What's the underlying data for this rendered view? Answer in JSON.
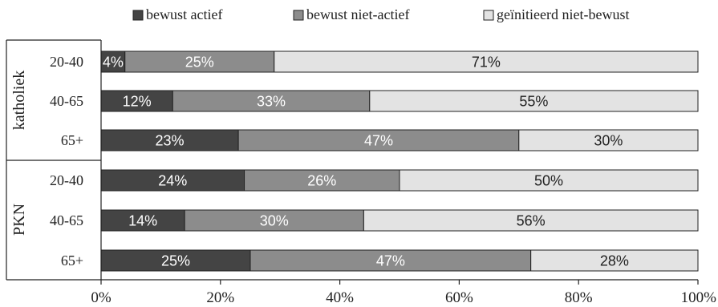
{
  "chart_data": {
    "type": "bar",
    "orientation": "horizontal",
    "stacked": true,
    "xlim": [
      0,
      100
    ],
    "x_ticks": [
      "0%",
      "20%",
      "40%",
      "60%",
      "80%",
      "100%"
    ],
    "legend_position": "top",
    "groups": [
      {
        "label": "katholiek",
        "categories": [
          "20-40",
          "40-65",
          "65+"
        ]
      },
      {
        "label": "PKN",
        "categories": [
          "20-40",
          "40-65",
          "65+"
        ]
      }
    ],
    "series": [
      {
        "name": "bewust actief",
        "color": "#444444",
        "label_color": "#ffffff",
        "values": [
          4,
          12,
          23,
          24,
          14,
          25
        ],
        "labels": [
          "4%",
          "12%",
          "23%",
          "24%",
          "14%",
          "25%"
        ]
      },
      {
        "name": "bewust niet-actief",
        "color": "#8c8c8c",
        "label_color": "#ffffff",
        "values": [
          25,
          33,
          47,
          26,
          30,
          47
        ],
        "labels": [
          "25%",
          "33%",
          "47%",
          "26%",
          "30%",
          "47%"
        ]
      },
      {
        "name": "geïnitieerd niet-bewust",
        "color": "#e3e3e3",
        "label_color": "#222222",
        "values": [
          71,
          55,
          30,
          50,
          56,
          28
        ],
        "labels": [
          "71%",
          "55%",
          "30%",
          "50%",
          "56%",
          "28%"
        ]
      }
    ]
  }
}
